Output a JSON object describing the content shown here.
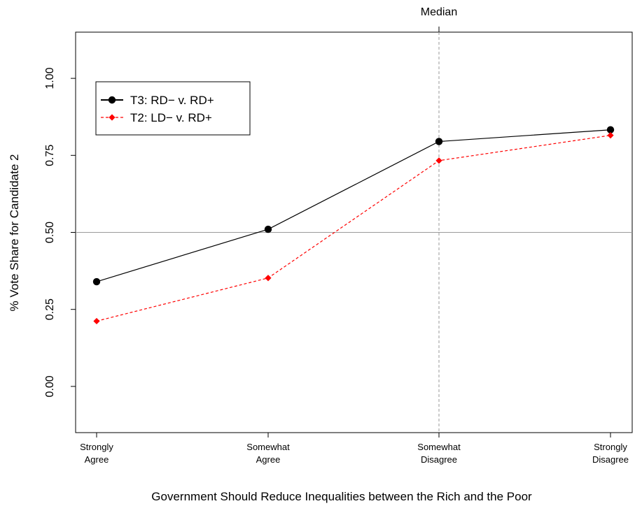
{
  "chart_data": {
    "type": "line",
    "xlabel": "Government Should Reduce Inequalities between the Rich and the Poor",
    "ylabel": "% Vote Share for Candidate 2",
    "categories": [
      [
        "Strongly",
        "Agree"
      ],
      [
        "Somewhat",
        "Agree"
      ],
      [
        "Somewhat",
        "Disagree"
      ],
      [
        "Strongly",
        "Disagree"
      ]
    ],
    "yticks": [
      "0.00",
      "0.25",
      "0.50",
      "0.75",
      "1.00"
    ],
    "ylim": [
      -0.15,
      1.15
    ],
    "reference_lines": {
      "horizontal": 0.5,
      "vertical_category_index": 2,
      "vertical_label": "Median"
    },
    "legend_position": "top-left",
    "grid": false,
    "series": [
      {
        "name": "T3: RD− v. RD+",
        "color": "#000000",
        "line": "solid",
        "marker": "circle",
        "values": [
          0.34,
          0.51,
          0.795,
          0.833
        ]
      },
      {
        "name": "T2: LD− v. RD+",
        "color": "#ff0000",
        "line": "dashed",
        "marker": "diamond",
        "values": [
          0.212,
          0.352,
          0.733,
          0.815
        ]
      }
    ]
  }
}
